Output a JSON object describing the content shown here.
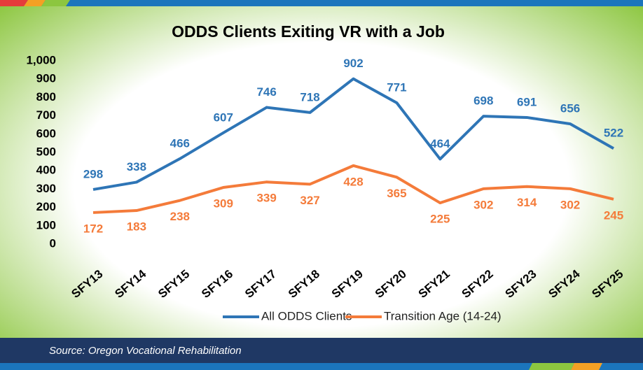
{
  "chart_data": {
    "type": "line",
    "title": "ODDS Clients Exiting VR with a Job",
    "categories": [
      "SFY13",
      "SFY14",
      "SFY15",
      "SFY16",
      "SFY17",
      "SFY18",
      "SFY19",
      "SFY20",
      "SFY21",
      "SFY22",
      "SFY23",
      "SFY24",
      "SFY25"
    ],
    "series": [
      {
        "name": "All ODDS Clients",
        "color": "#2e75b6",
        "values": [
          298,
          338,
          466,
          607,
          746,
          718,
          902,
          771,
          464,
          698,
          691,
          656,
          522
        ]
      },
      {
        "name": "Transition Age (14-24)",
        "color": "#f47b3a",
        "values": [
          172,
          183,
          238,
          309,
          339,
          327,
          428,
          365,
          225,
          302,
          314,
          302,
          245
        ]
      }
    ],
    "ylim": [
      0,
      1000
    ],
    "yticks": [
      0,
      100,
      200,
      300,
      400,
      500,
      600,
      700,
      800,
      900,
      {
        "value": 1000,
        "label": "1,000"
      }
    ],
    "grid": false,
    "legend": "bottom"
  },
  "source": "Source: Oregon Vocational Rehabilitation"
}
